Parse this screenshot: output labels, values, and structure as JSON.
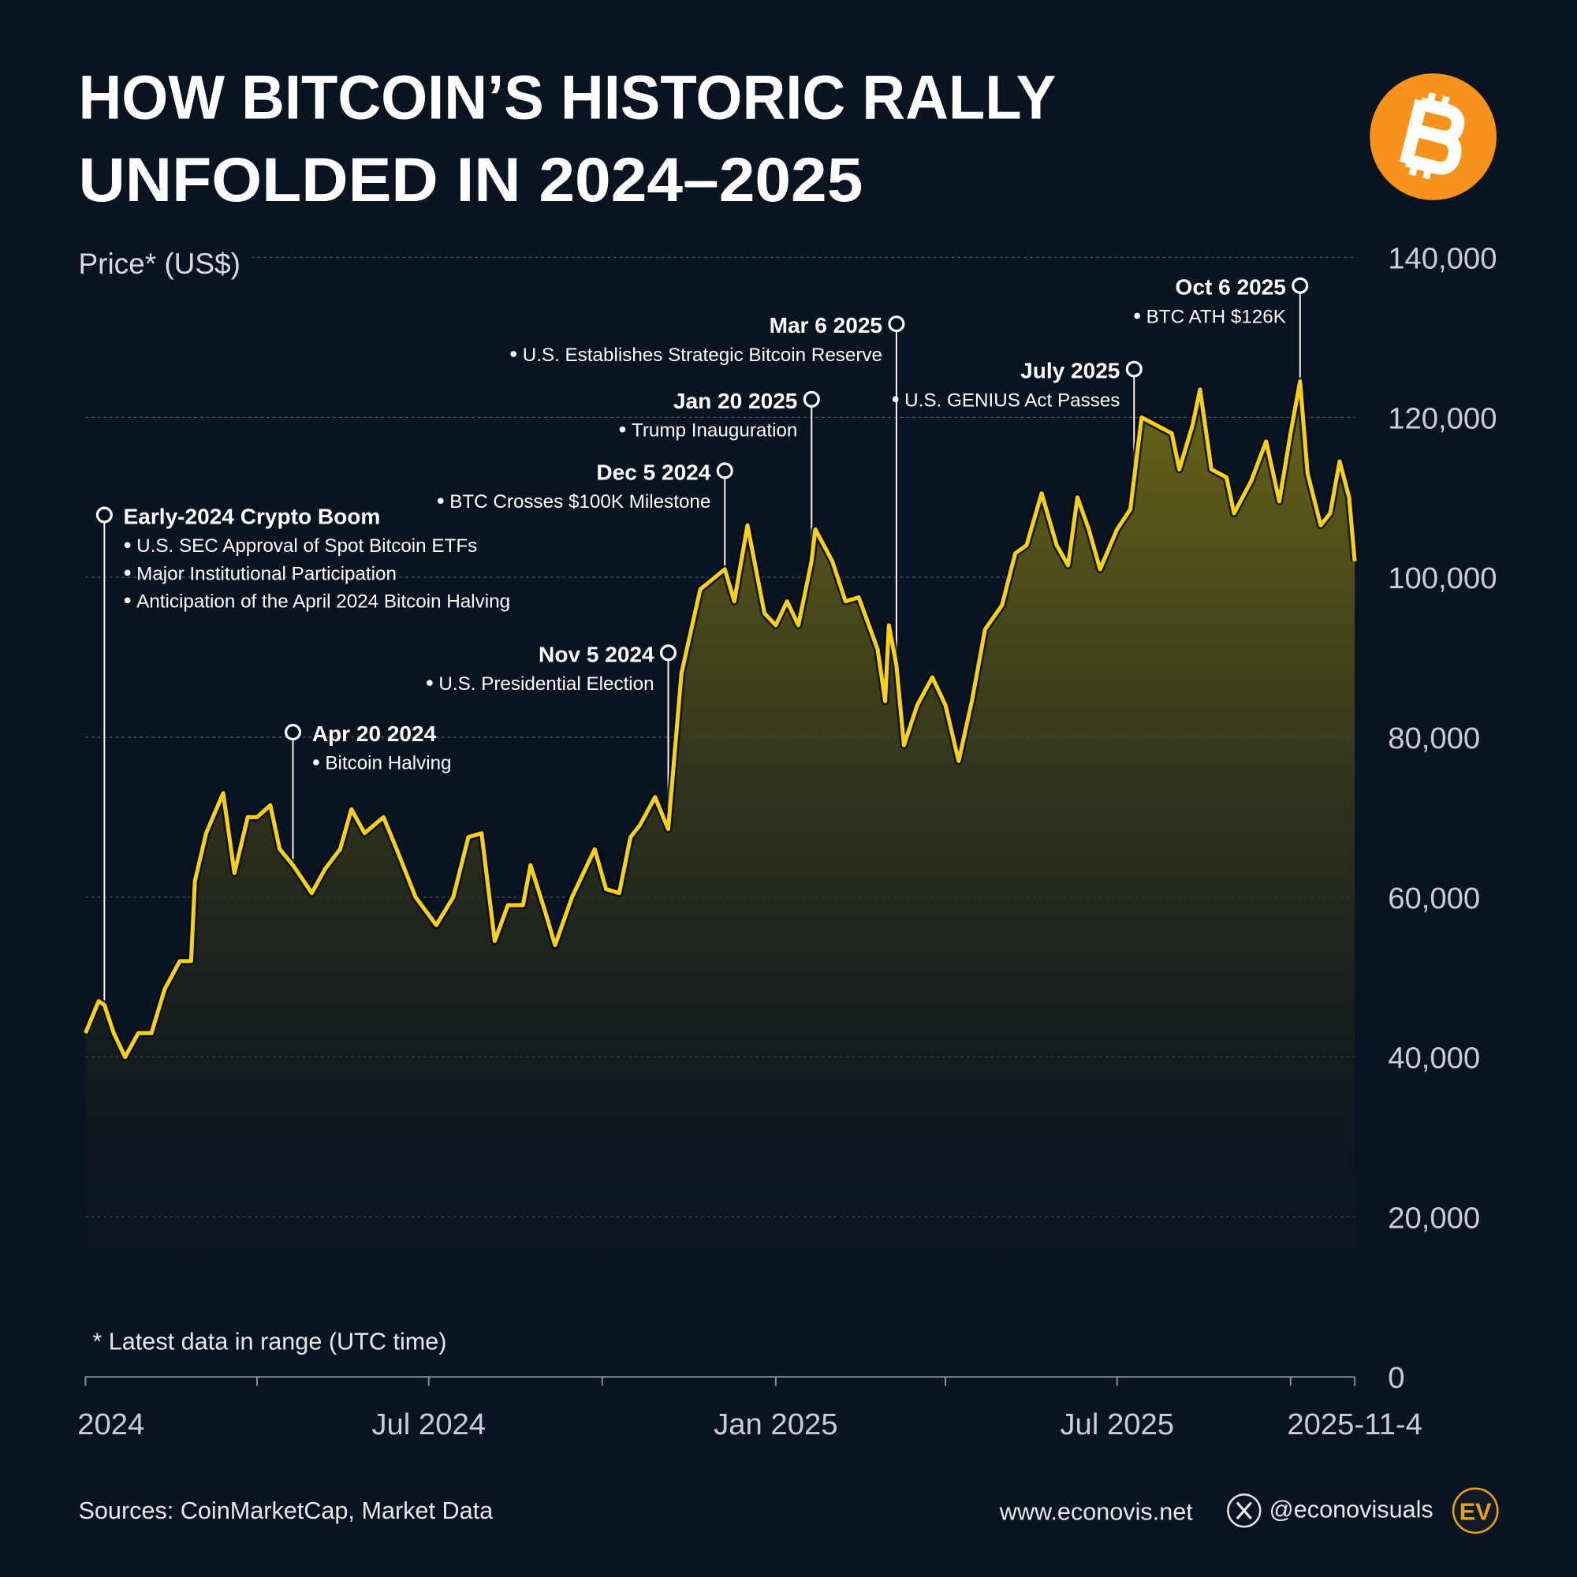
{
  "chart_data": {
    "type": "line",
    "title": [
      "HOW BITCOIN’S HISTORIC RALLY",
      "UNFOLDED IN 2024–2025"
    ],
    "y_label": "Price* (US$)",
    "footnote": "* Latest data in range (UTC time)",
    "source": "Sources: CoinMarketCap, Market Data",
    "website": "www.econovis.net",
    "handle": "@econovisuals",
    "logo": "EV",
    "xlim": [
      "2024-01-01",
      "2025-11-04"
    ],
    "xticks": [
      {
        "value": "2024-01-01",
        "label": "2024"
      },
      {
        "value": "2024-07-01",
        "label": "Jul 2024"
      },
      {
        "value": "2025-01-01",
        "label": "Jan 2025"
      },
      {
        "value": "2025-07-01",
        "label": "Jul 2025"
      },
      {
        "value": "2025-11-04",
        "label": "2025-11-4"
      }
    ],
    "xticks_minor": [
      "2024-04-01",
      "2024-10-01",
      "2025-04-01",
      "2025-10-01"
    ],
    "ylim": [
      0,
      140000
    ],
    "yticks": [
      0,
      {
        "value": 20000,
        "label": "20,000"
      },
      {
        "value": 40000,
        "label": "40,000"
      },
      {
        "value": 60000,
        "label": "60,000"
      },
      {
        "value": 80000,
        "label": "80,000"
      },
      {
        "value": 100000,
        "label": "100,000"
      },
      {
        "value": 120000,
        "label": "120,000"
      },
      {
        "value": 140000,
        "label": "140,000"
      }
    ],
    "grid": true,
    "x": [
      "2024-01-01",
      "2024-01-08",
      "2024-01-11",
      "2024-01-16",
      "2024-01-22",
      "2024-01-29",
      "2024-02-05",
      "2024-02-12",
      "2024-02-20",
      "2024-02-26",
      "2024-02-28",
      "2024-03-05",
      "2024-03-14",
      "2024-03-20",
      "2024-03-27",
      "2024-04-01",
      "2024-04-08",
      "2024-04-13",
      "2024-04-20",
      "2024-04-30",
      "2024-05-07",
      "2024-05-15",
      "2024-05-21",
      "2024-05-28",
      "2024-06-07",
      "2024-06-14",
      "2024-06-24",
      "2024-07-05",
      "2024-07-14",
      "2024-07-22",
      "2024-07-29",
      "2024-08-05",
      "2024-08-12",
      "2024-08-20",
      "2024-08-24",
      "2024-09-01",
      "2024-09-06",
      "2024-09-15",
      "2024-09-27",
      "2024-10-03",
      "2024-10-10",
      "2024-10-16",
      "2024-10-21",
      "2024-10-29",
      "2024-11-05",
      "2024-11-12",
      "2024-11-22",
      "2024-12-05",
      "2024-12-10",
      "2024-12-17",
      "2024-12-26",
      "2025-01-01",
      "2025-01-07",
      "2025-01-13",
      "2025-01-20",
      "2025-01-22",
      "2025-01-31",
      "2025-02-07",
      "2025-02-14",
      "2025-02-24",
      "2025-02-28",
      "2025-03-02",
      "2025-03-06",
      "2025-03-10",
      "2025-03-17",
      "2025-03-25",
      "2025-04-01",
      "2025-04-08",
      "2025-04-15",
      "2025-04-22",
      "2025-05-01",
      "2025-05-08",
      "2025-05-14",
      "2025-05-22",
      "2025-05-30",
      "2025-06-05",
      "2025-06-10",
      "2025-06-16",
      "2025-06-22",
      "2025-07-01",
      "2025-07-08",
      "2025-07-14",
      "2025-07-22",
      "2025-07-30",
      "2025-08-03",
      "2025-08-10",
      "2025-08-14",
      "2025-08-20",
      "2025-08-28",
      "2025-09-01",
      "2025-09-10",
      "2025-09-18",
      "2025-09-25",
      "2025-10-01",
      "2025-10-06",
      "2025-10-10",
      "2025-10-17",
      "2025-10-22",
      "2025-10-27",
      "2025-11-01",
      "2025-11-04"
    ],
    "series": [
      {
        "name": "BTC price",
        "color": "#f7d117",
        "values": [
          43000,
          47000,
          46500,
          43000,
          40000,
          43000,
          43000,
          48500,
          52000,
          52000,
          62000,
          68000,
          73000,
          63000,
          70000,
          70000,
          71500,
          66000,
          64000,
          60500,
          63500,
          66000,
          71000,
          68000,
          70000,
          66000,
          60000,
          56500,
          60000,
          67500,
          68000,
          54500,
          59000,
          59000,
          64000,
          58000,
          54000,
          60000,
          66000,
          61000,
          60500,
          67500,
          69000,
          72500,
          68500,
          88000,
          98500,
          101000,
          97000,
          106500,
          95500,
          94000,
          97000,
          94000,
          102000,
          106000,
          102000,
          97000,
          97500,
          91000,
          84500,
          94000,
          89000,
          79000,
          84000,
          87500,
          84000,
          77000,
          84500,
          93500,
          96500,
          103000,
          104000,
          110500,
          104000,
          101500,
          110000,
          106000,
          101000,
          106000,
          108500,
          120000,
          119000,
          118000,
          113500,
          119000,
          123500,
          113500,
          112500,
          108000,
          112000,
          117000,
          109500,
          118000,
          124500,
          113000,
          106500,
          108000,
          114500,
          110000,
          102000
        ]
      }
    ],
    "annotations": [
      {
        "x": "2024-01-11",
        "label": "Early-2024 Crypto Boom",
        "notes": [
          "U.S. SEC Approval of Spot Bitcoin ETFs",
          "Major Institutional Participation",
          "Anticipation of the April 2024 Bitcoin Halving"
        ]
      },
      {
        "x": "2024-04-20",
        "label": "Apr 20 2024",
        "notes": [
          "Bitcoin Halving"
        ]
      },
      {
        "x": "2024-11-05",
        "label": "Nov 5 2024",
        "notes": [
          "U.S. Presidential Election"
        ]
      },
      {
        "x": "2024-12-05",
        "label": "Dec 5 2024",
        "notes": [
          "BTC Crosses $100K Milestone"
        ]
      },
      {
        "x": "2025-01-20",
        "label": "Jan 20 2025",
        "notes": [
          "Trump Inauguration"
        ]
      },
      {
        "x": "2025-03-06",
        "label": "Mar 6 2025",
        "notes": [
          "U.S. Establishes Strategic Bitcoin Reserve"
        ]
      },
      {
        "x": "2025-07-10",
        "label": "July 2025",
        "notes": [
          "U.S. GENIUS Act Passes"
        ]
      },
      {
        "x": "2025-10-06",
        "label": "Oct 6 2025",
        "notes": [
          "BTC ATH $126K"
        ]
      }
    ]
  }
}
